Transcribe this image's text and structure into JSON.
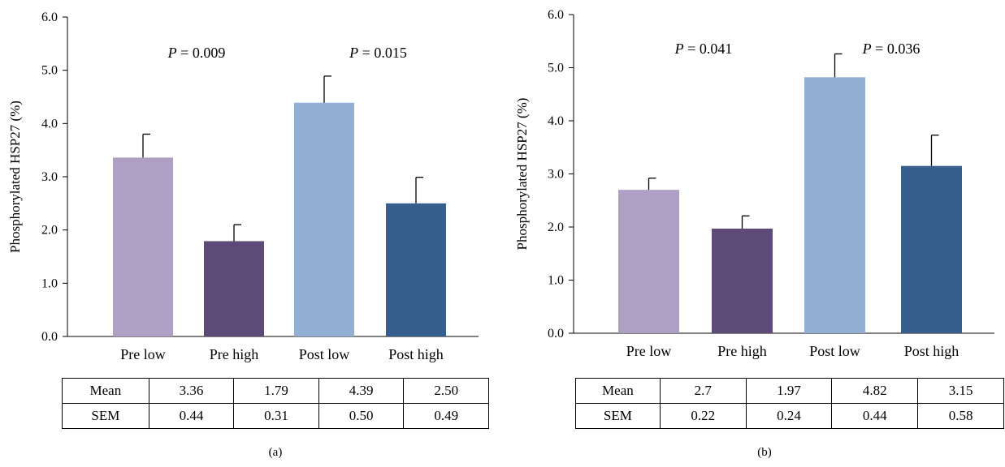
{
  "chart_data": [
    {
      "type": "bar",
      "panel_label": "(a)",
      "ylabel": "Phosphorylated HSP27 (%)",
      "ylim": [
        0,
        6
      ],
      "yticks": [
        "0.0",
        "1.0",
        "2.0",
        "3.0",
        "4.0",
        "5.0",
        "6.0"
      ],
      "categories": [
        "Pre low",
        "Pre high",
        "Post low",
        "Post high"
      ],
      "values": [
        3.36,
        1.79,
        4.39,
        2.5
      ],
      "errors": [
        0.44,
        0.31,
        0.5,
        0.49
      ],
      "colors": [
        "#ae9fc4",
        "#5d4a76",
        "#93b0d4",
        "#365f8e"
      ],
      "annotations": [
        {
          "italic": "P",
          "text": " = 0.009",
          "between": [
            0,
            1
          ]
        },
        {
          "italic": "P",
          "text": " = 0.015",
          "between": [
            2,
            3
          ]
        }
      ],
      "table": {
        "rows": [
          {
            "label": "Mean",
            "cells": [
              "3.36",
              "1.79",
              "4.39",
              "2.50"
            ]
          },
          {
            "label": "SEM",
            "cells": [
              "0.44",
              "0.31",
              "0.50",
              "0.49"
            ]
          }
        ]
      }
    },
    {
      "type": "bar",
      "panel_label": "(b)",
      "ylabel": "Phosphorylated HSP27 (%)",
      "ylim": [
        0,
        6
      ],
      "yticks": [
        "0.0",
        "1.0",
        "2.0",
        "3.0",
        "4.0",
        "5.0",
        "6.0"
      ],
      "categories": [
        "Pre low",
        "Pre high",
        "Post low",
        "Post high"
      ],
      "values": [
        2.7,
        1.97,
        4.82,
        3.15
      ],
      "errors": [
        0.22,
        0.24,
        0.44,
        0.58
      ],
      "colors": [
        "#ae9fc4",
        "#5d4a76",
        "#93b0d4",
        "#365f8e"
      ],
      "annotations": [
        {
          "italic": "P",
          "text": " = 0.041",
          "between": [
            0,
            1
          ]
        },
        {
          "italic": "P",
          "text": " = 0.036",
          "between": [
            2,
            3
          ]
        }
      ],
      "table": {
        "rows": [
          {
            "label": "Mean",
            "cells": [
              "2.7",
              "1.97",
              "4.82",
              "3.15"
            ]
          },
          {
            "label": "SEM",
            "cells": [
              "0.22",
              "0.24",
              "0.44",
              "0.58"
            ]
          }
        ]
      }
    }
  ]
}
